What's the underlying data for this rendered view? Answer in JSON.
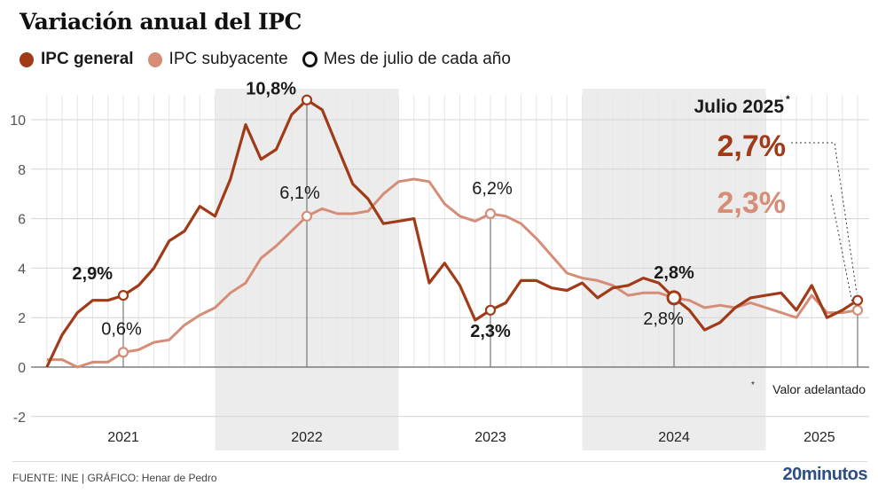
{
  "title": "Variación anual del IPC",
  "legend": [
    {
      "label": "IPC general",
      "color": "#a03a17",
      "kind": "dot",
      "bold": true
    },
    {
      "label": "IPC subyacente",
      "color": "#d58d78",
      "kind": "dot",
      "bold": false
    },
    {
      "label": "Mes de julio de cada año",
      "color": "#111111",
      "kind": "ring",
      "bold": false
    }
  ],
  "footer": {
    "source": "FUENTE: INE  |  GRÁFICO: Henar de Pedro",
    "logo": "20minutos"
  },
  "highlight": {
    "heading": "Julio 2025",
    "heading_mark": "*",
    "general_value": "2,7%",
    "core_value": "2,3%",
    "footnote_mark": "*",
    "footnote": "Valor adelantado"
  },
  "chart_data": {
    "type": "line",
    "title": "Variación anual del IPC",
    "xlabel": "",
    "ylabel": "",
    "ylim": [
      -2,
      11
    ],
    "yticks": [
      -2,
      0,
      2,
      4,
      6,
      8,
      10
    ],
    "grid": true,
    "legend_position": "top-left",
    "year_labels": [
      "2021",
      "2022",
      "2023",
      "2024",
      "2025"
    ],
    "shaded_years": [
      "2022",
      "2024"
    ],
    "x": [
      "2021-02",
      "2021-03",
      "2021-04",
      "2021-05",
      "2021-06",
      "2021-07",
      "2021-08",
      "2021-09",
      "2021-10",
      "2021-11",
      "2021-12",
      "2022-01",
      "2022-02",
      "2022-03",
      "2022-04",
      "2022-05",
      "2022-06",
      "2022-07",
      "2022-08",
      "2022-09",
      "2022-10",
      "2022-11",
      "2022-12",
      "2023-01",
      "2023-02",
      "2023-03",
      "2023-04",
      "2023-05",
      "2023-06",
      "2023-07",
      "2023-08",
      "2023-09",
      "2023-10",
      "2023-11",
      "2023-12",
      "2024-01",
      "2024-02",
      "2024-03",
      "2024-04",
      "2024-05",
      "2024-06",
      "2024-07",
      "2024-08",
      "2024-09",
      "2024-10",
      "2024-11",
      "2024-12",
      "2025-01",
      "2025-02",
      "2025-03",
      "2025-04",
      "2025-05",
      "2025-06",
      "2025-07"
    ],
    "series": [
      {
        "name": "IPC general",
        "color": "#a03a17",
        "values": [
          0.0,
          1.3,
          2.2,
          2.7,
          2.7,
          2.9,
          3.3,
          4.0,
          5.1,
          5.5,
          6.5,
          6.1,
          7.6,
          9.8,
          8.4,
          8.8,
          10.2,
          10.8,
          10.4,
          8.9,
          7.4,
          6.8,
          5.8,
          5.9,
          6.0,
          3.4,
          4.2,
          3.3,
          1.9,
          2.3,
          2.6,
          3.5,
          3.5,
          3.2,
          3.1,
          3.4,
          2.8,
          3.2,
          3.3,
          3.6,
          3.4,
          2.8,
          2.3,
          1.5,
          1.8,
          2.4,
          2.8,
          2.9,
          3.0,
          2.3,
          3.3,
          2.0,
          2.3,
          2.7
        ]
      },
      {
        "name": "IPC subyacente",
        "color": "#d58d78",
        "values": [
          0.3,
          0.3,
          0.0,
          0.2,
          0.2,
          0.6,
          0.7,
          1.0,
          1.1,
          1.7,
          2.1,
          2.4,
          3.0,
          3.4,
          4.4,
          4.9,
          5.5,
          6.1,
          6.4,
          6.2,
          6.2,
          6.3,
          7.0,
          7.5,
          7.6,
          7.5,
          6.6,
          6.1,
          5.9,
          6.2,
          6.1,
          5.8,
          5.2,
          4.5,
          3.8,
          3.6,
          3.5,
          3.3,
          2.9,
          3.0,
          3.0,
          2.8,
          2.7,
          2.4,
          2.5,
          2.4,
          2.6,
          2.4,
          2.2,
          2.0,
          2.9,
          2.2,
          2.2,
          2.3
        ]
      }
    ],
    "july_markers": [
      {
        "x": "2021-07",
        "general": "2,9%",
        "core": "0,6%"
      },
      {
        "x": "2022-07",
        "general": "10,8%",
        "core": "6,1%"
      },
      {
        "x": "2023-07",
        "general": "2,3%",
        "core": "6,2%"
      },
      {
        "x": "2024-07",
        "general": "2,8%",
        "core": "2,8%"
      },
      {
        "x": "2025-07",
        "general": "2,7%",
        "core": "2,3%"
      }
    ]
  }
}
